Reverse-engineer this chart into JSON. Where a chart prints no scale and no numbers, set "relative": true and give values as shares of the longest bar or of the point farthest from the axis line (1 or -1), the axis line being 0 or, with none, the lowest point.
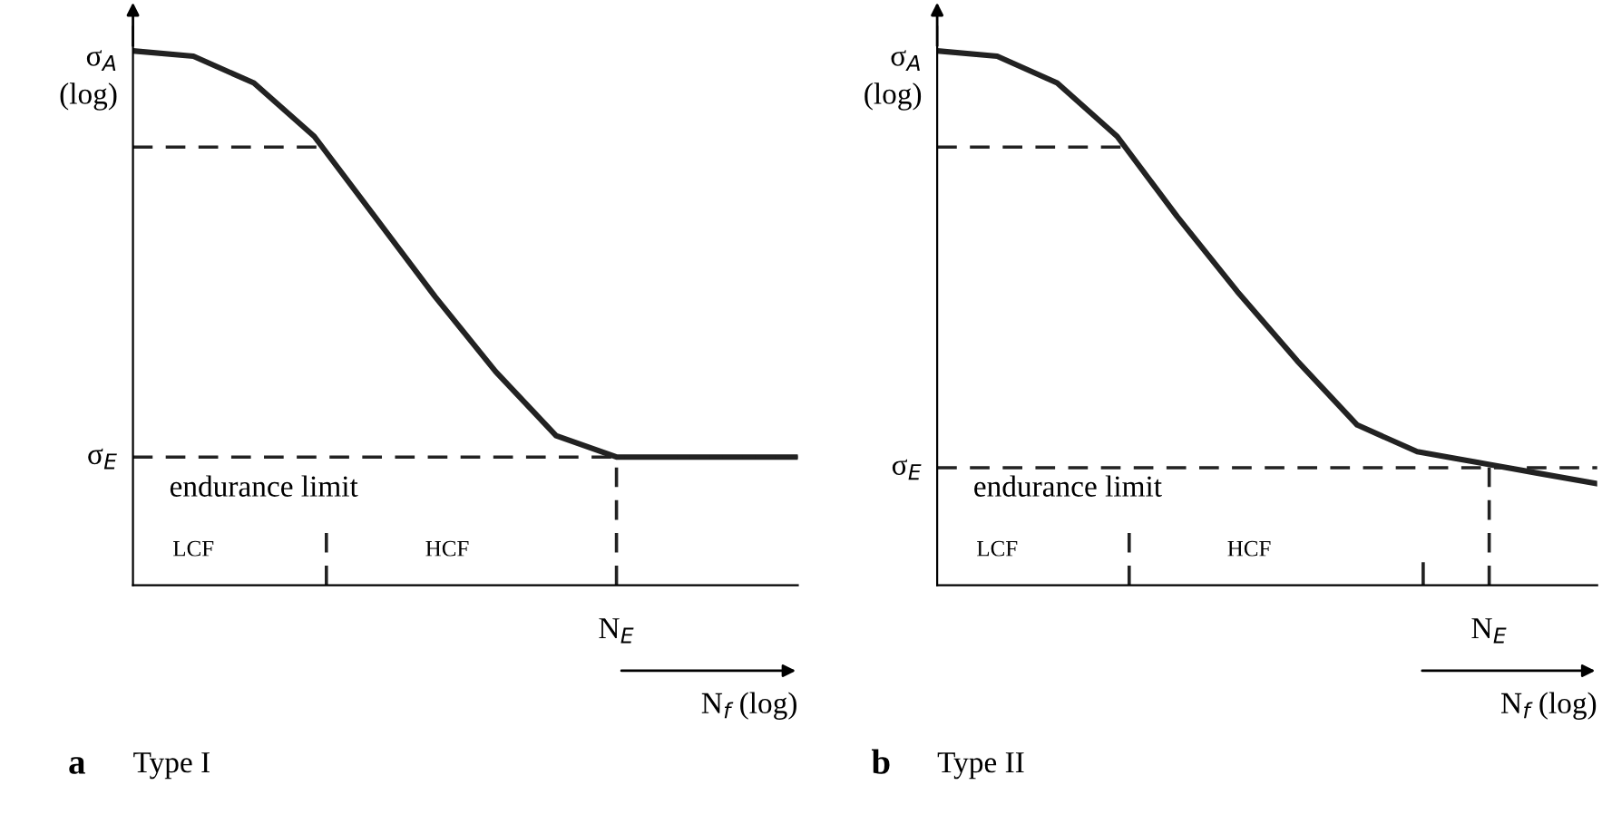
{
  "chart_data": [
    {
      "type": "line",
      "relative": true,
      "title": "Type I",
      "xlabel": "N$_{f}$ (log)",
      "ylabel": "σ$_{A}$\n(log)",
      "marker": "none",
      "line_style": "solid",
      "categories": [
        null,
        null,
        null,
        null,
        null,
        null,
        null,
        null,
        null,
        null,
        null,
        null
      ],
      "series": [
        {
          "color": "#222222",
          "values": [
            1.0,
            0.99,
            0.94,
            0.84,
            0.69,
            0.54,
            0.4,
            0.28,
            0.24,
            0.24,
            0.24,
            0.24
          ]
        }
      ],
      "ref_lines": [
        {
          "axis": "y",
          "value": 0.82,
          "label": null,
          "color": "#222222",
          "line_style": "dashed"
        },
        {
          "axis": "y",
          "value": 0.24,
          "label": "σ$_{E}$",
          "color": "#222222",
          "line_style": "dashed"
        }
      ],
      "annotations": [
        "endurance limit",
        "LCF",
        "HCF",
        "a",
        "N$_{E}$"
      ]
    },
    {
      "type": "line",
      "relative": true,
      "title": "Type II",
      "xlabel": "N$_{f}$ (log)",
      "ylabel": "σ$_{A}$\n(log)",
      "marker": "none",
      "line_style": "solid",
      "categories": [
        null,
        null,
        null,
        null,
        null,
        null,
        null,
        null,
        null,
        null,
        null,
        null
      ],
      "series": [
        {
          "color": "#222222",
          "values": [
            1.0,
            0.99,
            0.94,
            0.84,
            0.69,
            0.55,
            0.42,
            0.3,
            0.25,
            0.23,
            0.21,
            0.19
          ]
        }
      ],
      "ref_lines": [
        {
          "axis": "y",
          "value": 0.82,
          "label": null,
          "color": "#222222",
          "line_style": "dashed"
        },
        {
          "axis": "y",
          "value": 0.22,
          "label": "σ$_{E}$",
          "color": "#222222",
          "line_style": "dashed"
        }
      ],
      "annotations": [
        "endurance limit",
        "LCF",
        "HCF",
        "b",
        "N$_{E}$"
      ]
    }
  ]
}
